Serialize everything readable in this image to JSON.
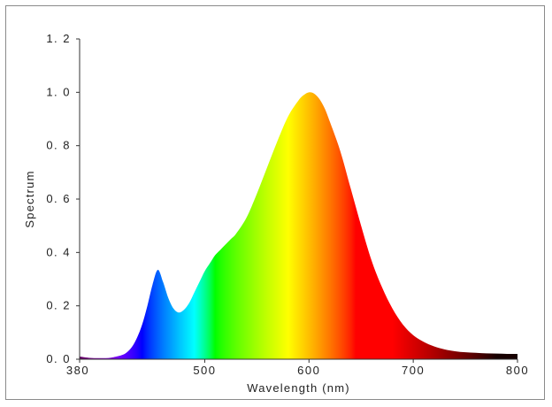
{
  "chart_data": {
    "type": "area",
    "title": "",
    "xlabel": "Wavelength (nm)",
    "ylabel": "Spectrum",
    "xlim": [
      380,
      800
    ],
    "ylim": [
      0,
      1.2
    ],
    "x_ticks": [
      500,
      600,
      700,
      800
    ],
    "x_tick_labels": [
      "500",
      "600",
      "700",
      "800"
    ],
    "x_start_label": "380",
    "y_ticks": [
      0,
      0.2,
      0.4,
      0.6,
      0.8,
      1.0,
      1.2
    ],
    "y_tick_labels": [
      "0. 0",
      "0. 2",
      "0. 4",
      "0. 6",
      "0. 8",
      "1. 0",
      "1. 2"
    ],
    "grid": false,
    "fill": "wavelength-colored spectrum",
    "x": [
      380,
      390,
      400,
      410,
      420,
      425,
      430,
      435,
      440,
      445,
      450,
      455,
      460,
      465,
      470,
      475,
      480,
      485,
      490,
      495,
      500,
      505,
      510,
      515,
      520,
      525,
      530,
      540,
      550,
      560,
      570,
      580,
      590,
      595,
      600,
      605,
      610,
      615,
      620,
      630,
      640,
      650,
      660,
      670,
      680,
      690,
      700,
      710,
      720,
      730,
      740,
      750,
      760,
      770,
      780,
      790,
      800
    ],
    "y": [
      0.01,
      0.005,
      0.004,
      0.006,
      0.015,
      0.025,
      0.045,
      0.08,
      0.13,
      0.2,
      0.28,
      0.335,
      0.29,
      0.23,
      0.19,
      0.175,
      0.185,
      0.21,
      0.25,
      0.29,
      0.33,
      0.36,
      0.39,
      0.41,
      0.43,
      0.45,
      0.47,
      0.53,
      0.62,
      0.72,
      0.82,
      0.91,
      0.97,
      0.99,
      1.0,
      0.995,
      0.975,
      0.94,
      0.89,
      0.78,
      0.64,
      0.5,
      0.37,
      0.27,
      0.19,
      0.13,
      0.09,
      0.065,
      0.048,
      0.037,
      0.03,
      0.026,
      0.024,
      0.022,
      0.021,
      0.02,
      0.02
    ]
  }
}
